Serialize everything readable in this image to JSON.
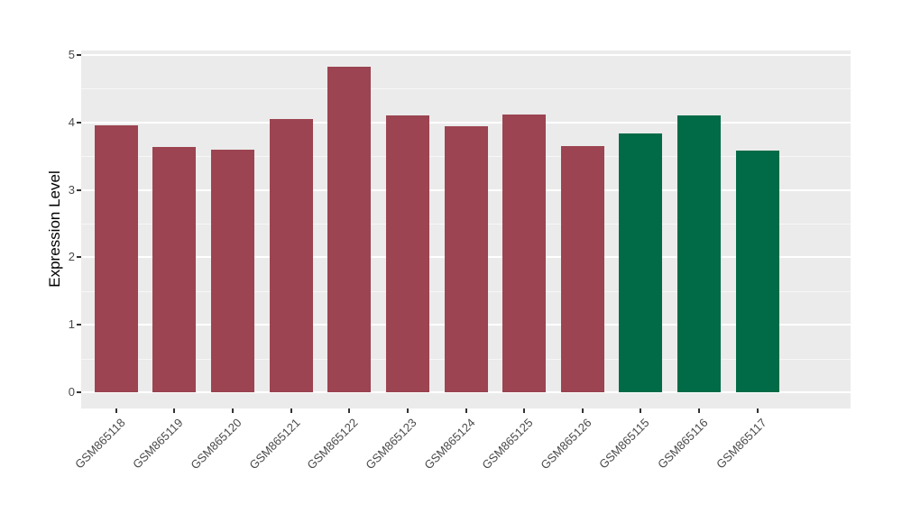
{
  "chart_data": {
    "type": "bar",
    "title": "",
    "xlabel": "",
    "ylabel": "Expression Level",
    "ylim": [
      0,
      5
    ],
    "yticks": [
      0,
      1,
      2,
      3,
      4,
      5
    ],
    "minor_gridlines": [
      0.5,
      1.5,
      2.5,
      3.5,
      4.5
    ],
    "grid": "on",
    "legend_position": "none",
    "categories": [
      "GSM865118",
      "GSM865119",
      "GSM865120",
      "GSM865121",
      "GSM865122",
      "GSM865123",
      "GSM865124",
      "GSM865125",
      "GSM865126",
      "GSM865115",
      "GSM865116",
      "GSM865117"
    ],
    "series": [
      {
        "name": "Expression Level",
        "values": [
          3.96,
          3.64,
          3.59,
          4.05,
          4.82,
          4.1,
          3.95,
          4.12,
          3.65,
          3.84,
          4.1,
          3.58
        ]
      }
    ],
    "bar_colors": [
      "#9C4451",
      "#9C4451",
      "#9C4451",
      "#9C4451",
      "#9C4451",
      "#9C4451",
      "#9C4451",
      "#9C4451",
      "#9C4451",
      "#016B47",
      "#016B47",
      "#016B47"
    ],
    "colors": {
      "bar_group_1": "#9C4451",
      "bar_group_2": "#016B47",
      "panel_background": "#EBEBEB",
      "grid_major": "#FFFFFF",
      "grid_minor": "#F5F5F5",
      "axis_text": "#4A4A4A",
      "axis_title": "#000000",
      "figure_background": "#FFFFFF"
    }
  }
}
